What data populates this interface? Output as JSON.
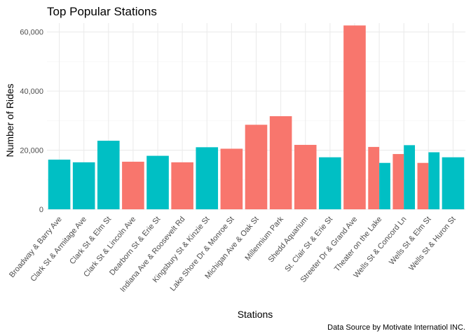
{
  "chart_data": {
    "type": "bar",
    "title": "Top Popular Stations",
    "xlabel": "Stations",
    "ylabel": "Number of Rides",
    "caption": "Data Source by Motivate Internatiol INC.",
    "ylim": [
      0,
      63000
    ],
    "yticks": [
      0,
      20000,
      40000,
      60000
    ],
    "ytick_labels": [
      "0",
      "20,000",
      "40,000",
      "60,000"
    ],
    "grid": true,
    "legend": "none",
    "colors": {
      "red": "#F8766D",
      "teal": "#00BFC4"
    },
    "categories": [
      "Broadway & Barry Ave",
      "Clark St & Armitage Ave",
      "Clark St & Elm St",
      "Clark St & Lincoln Ave",
      "Dearborn St & Erie St",
      "Indiana Ave & Roosevelt Rd",
      "Kingsbury St & Kinzie St",
      "Lake Shore Dr & Monroe St",
      "Michigan Ave & Oak St",
      "Millennium Park",
      "Shedd Aquarium",
      "St. Clair St & Erie St",
      "Streeter Dr & Grand Ave",
      "Theater on the Lake",
      "Wells St & Concord Ln",
      "Wells St & Elm St",
      "Wells St & Huron St"
    ],
    "bars": [
      {
        "values": [
          {
            "value": 16800,
            "color": "teal"
          }
        ]
      },
      {
        "values": [
          {
            "value": 15900,
            "color": "teal"
          }
        ]
      },
      {
        "values": [
          {
            "value": 23200,
            "color": "teal"
          }
        ]
      },
      {
        "values": [
          {
            "value": 16100,
            "color": "red"
          }
        ]
      },
      {
        "values": [
          {
            "value": 18100,
            "color": "teal"
          }
        ]
      },
      {
        "values": [
          {
            "value": 15900,
            "color": "red"
          }
        ]
      },
      {
        "values": [
          {
            "value": 21000,
            "color": "teal"
          }
        ]
      },
      {
        "values": [
          {
            "value": 20500,
            "color": "red"
          }
        ]
      },
      {
        "values": [
          {
            "value": 28600,
            "color": "red"
          }
        ]
      },
      {
        "values": [
          {
            "value": 31500,
            "color": "red"
          }
        ]
      },
      {
        "values": [
          {
            "value": 21800,
            "color": "red"
          }
        ]
      },
      {
        "values": [
          {
            "value": 17600,
            "color": "teal"
          }
        ]
      },
      {
        "values": [
          {
            "value": 62200,
            "color": "red"
          }
        ]
      },
      {
        "values": [
          {
            "value": 21100,
            "color": "red"
          },
          {
            "value": 15700,
            "color": "teal"
          }
        ]
      },
      {
        "values": [
          {
            "value": 18700,
            "color": "red"
          },
          {
            "value": 21700,
            "color": "teal"
          }
        ]
      },
      {
        "values": [
          {
            "value": 15700,
            "color": "red"
          },
          {
            "value": 19300,
            "color": "teal"
          }
        ]
      },
      {
        "values": [
          {
            "value": 17600,
            "color": "teal"
          }
        ]
      }
    ]
  }
}
